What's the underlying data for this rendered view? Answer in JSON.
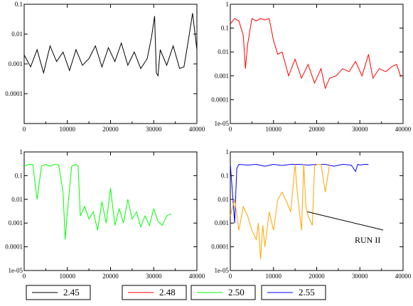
{
  "chart_data": [
    {
      "type": "line",
      "panel": "top-left",
      "xlim": [
        0,
        40000
      ],
      "ylim": [
        1e-05,
        0.1
      ],
      "yscale": "log",
      "x_ticks": [
        0,
        10000,
        20000,
        30000,
        40000
      ],
      "x_tick_labels": [
        "0",
        "10000",
        "20000",
        "30000",
        "40000"
      ],
      "y_ticks": [
        0.0001,
        0.001,
        0.01,
        0.1
      ],
      "y_tick_labels": [
        "0.0001",
        "0.001",
        "0.01",
        "0.1"
      ],
      "grid": false,
      "series": [
        {
          "legend_ref": "2.45",
          "color": "#000000",
          "x": [
            0,
            1500,
            3000,
            4500,
            6000,
            7500,
            9000,
            10500,
            12000,
            13500,
            15000,
            16500,
            18000,
            19500,
            21000,
            22500,
            24000,
            25500,
            27000,
            28500,
            29500,
            30200,
            30600,
            31000,
            31500,
            33000,
            34500,
            36000,
            37000,
            38000,
            39000,
            40000
          ],
          "y": [
            0.002,
            0.0008,
            0.003,
            0.0005,
            0.004,
            0.0012,
            0.0025,
            0.0006,
            0.003,
            0.0009,
            0.0015,
            0.004,
            0.0008,
            0.0035,
            0.0012,
            0.005,
            0.0009,
            0.0025,
            0.0007,
            0.0015,
            0.008,
            0.04,
            0.0005,
            0.0004,
            0.003,
            0.0009,
            0.004,
            0.0007,
            0.0008,
            0.006,
            0.05,
            0.003
          ]
        }
      ]
    },
    {
      "type": "line",
      "panel": "top-right",
      "xlim": [
        0,
        40000
      ],
      "ylim": [
        1e-05,
        1
      ],
      "yscale": "log",
      "x_ticks": [
        0,
        10000,
        20000,
        30000,
        40000
      ],
      "x_tick_labels": [
        "0",
        "10000",
        "20000",
        "30000",
        "40000"
      ],
      "y_ticks": [
        1e-05,
        0.0001,
        0.001,
        0.01,
        0.1,
        1
      ],
      "y_tick_labels": [
        "1e-05",
        "0.0001",
        "0.001",
        "0.01",
        "0.1",
        "1"
      ],
      "grid": false,
      "series": [
        {
          "legend_ref": "2.48",
          "color": "#ff0000",
          "x": [
            0,
            1000,
            2000,
            3000,
            3500,
            4000,
            5000,
            6000,
            7000,
            8000,
            9000,
            10000,
            11000,
            12000,
            13500,
            15000,
            16500,
            18000,
            19500,
            21000,
            22000,
            23000,
            24500,
            26000,
            27500,
            29000,
            30500,
            32000,
            33000,
            34500,
            36000,
            37500,
            38500,
            39500
          ],
          "y": [
            0.15,
            0.25,
            0.2,
            0.05,
            0.002,
            0.02,
            0.25,
            0.2,
            0.25,
            0.22,
            0.25,
            0.03,
            0.008,
            0.01,
            0.001,
            0.005,
            0.0008,
            0.003,
            0.0005,
            0.002,
            0.0003,
            0.0008,
            0.001,
            0.002,
            0.0015,
            0.004,
            0.001,
            0.008,
            0.0008,
            0.002,
            0.0015,
            0.0025,
            0.003,
            0.0009
          ]
        }
      ]
    },
    {
      "type": "line",
      "panel": "bottom-left",
      "xlim": [
        0,
        40000
      ],
      "ylim": [
        1e-05,
        1
      ],
      "yscale": "log",
      "x_ticks": [
        0,
        10000,
        20000,
        30000,
        40000
      ],
      "x_tick_labels": [
        "0",
        "10000",
        "20000",
        "30000",
        "40000"
      ],
      "y_ticks": [
        1e-05,
        0.0001,
        0.001,
        0.01,
        0.1,
        1
      ],
      "y_tick_labels": [
        "1e-05",
        "0.0001",
        "0.001",
        "0.01",
        "0.1",
        "1"
      ],
      "grid": false,
      "series": [
        {
          "legend_ref": "2.50",
          "color": "#00ff00",
          "x": [
            0,
            1000,
            2000,
            3000,
            4000,
            5000,
            6000,
            7000,
            8000,
            9000,
            9500,
            10000,
            11000,
            12000,
            12500,
            13000,
            14000,
            15000,
            16000,
            17000,
            18000,
            19000,
            20000,
            21000,
            22000,
            23000,
            24000,
            25000,
            26000,
            27000,
            28000,
            29000,
            30000,
            31000,
            32000,
            33000,
            34000
          ],
          "y": [
            0.25,
            0.3,
            0.3,
            0.01,
            0.25,
            0.3,
            0.25,
            0.3,
            0.28,
            0.02,
            0.0002,
            0.003,
            0.25,
            0.3,
            0.25,
            0.002,
            0.005,
            0.0015,
            0.003,
            0.0005,
            0.008,
            0.001,
            0.03,
            0.0008,
            0.004,
            0.001,
            0.01,
            0.0015,
            0.003,
            0.0007,
            0.002,
            0.0008,
            0.004,
            0.0012,
            0.0008,
            0.002,
            0.0025
          ]
        }
      ]
    },
    {
      "type": "line",
      "panel": "bottom-right",
      "xlim": [
        0,
        40000
      ],
      "ylim": [
        1e-05,
        1
      ],
      "yscale": "log",
      "x_ticks": [
        0,
        10000,
        20000,
        30000,
        40000
      ],
      "x_tick_labels": [
        "0",
        "10000",
        "20000",
        "30000",
        "40000"
      ],
      "y_ticks": [
        1e-05,
        0.0001,
        0.001,
        0.01,
        0.1,
        1
      ],
      "y_tick_labels": [
        "1e-05",
        "0.0001",
        "0.001",
        "0.01",
        "0.1",
        "1"
      ],
      "grid": false,
      "annotation": {
        "text": "RUN II",
        "point_x": 17000,
        "point_y": 0.003
      },
      "series": [
        {
          "legend_ref": "2.55",
          "color": "#0000ff",
          "x": [
            0,
            500,
            1000,
            1500,
            2000,
            4000,
            6000,
            8000,
            10000,
            12000,
            14000,
            16000,
            18000,
            20000,
            22000,
            24000,
            26000,
            28000,
            29000,
            29500,
            30000,
            31000,
            32000
          ],
          "y": [
            0.3,
            0.02,
            0.001,
            0.2,
            0.3,
            0.28,
            0.3,
            0.25,
            0.3,
            0.27,
            0.3,
            0.3,
            0.28,
            0.3,
            0.3,
            0.25,
            0.3,
            0.28,
            0.15,
            0.3,
            0.28,
            0.3,
            0.3
          ]
        },
        {
          "legend_ref": "2.48",
          "color": "#ffa500",
          "x": [
            0,
            1000,
            2000,
            3000,
            4000,
            5000,
            6000,
            6500,
            7000,
            7500,
            8000,
            9000,
            10000,
            11000,
            12000,
            13000,
            14000,
            15000,
            15500,
            16000,
            16500,
            17000,
            17500,
            18000,
            19000,
            19500,
            20000,
            21000,
            22000,
            23000
          ],
          "y": [
            0.002,
            0.01,
            0.0005,
            0.005,
            0.002,
            0.0005,
            0.0002,
            0.001,
            3e-05,
            0.0008,
            0.0001,
            0.003,
            0.0005,
            0.01,
            0.02,
            0.008,
            0.003,
            0.3,
            0.02,
            0.003,
            0.0005,
            0.3,
            0.005,
            0.002,
            0.0008,
            0.25,
            0.3,
            0.3,
            0.02,
            0.3
          ]
        }
      ]
    }
  ],
  "legend": {
    "placement": "bottom",
    "items": [
      {
        "label": "2.45",
        "color": "#000000"
      },
      {
        "label": "2.48",
        "color": "#ff0000"
      },
      {
        "label": "2.50",
        "color": "#00ff00"
      },
      {
        "label": "2.55",
        "color": "#0000ff"
      }
    ]
  }
}
